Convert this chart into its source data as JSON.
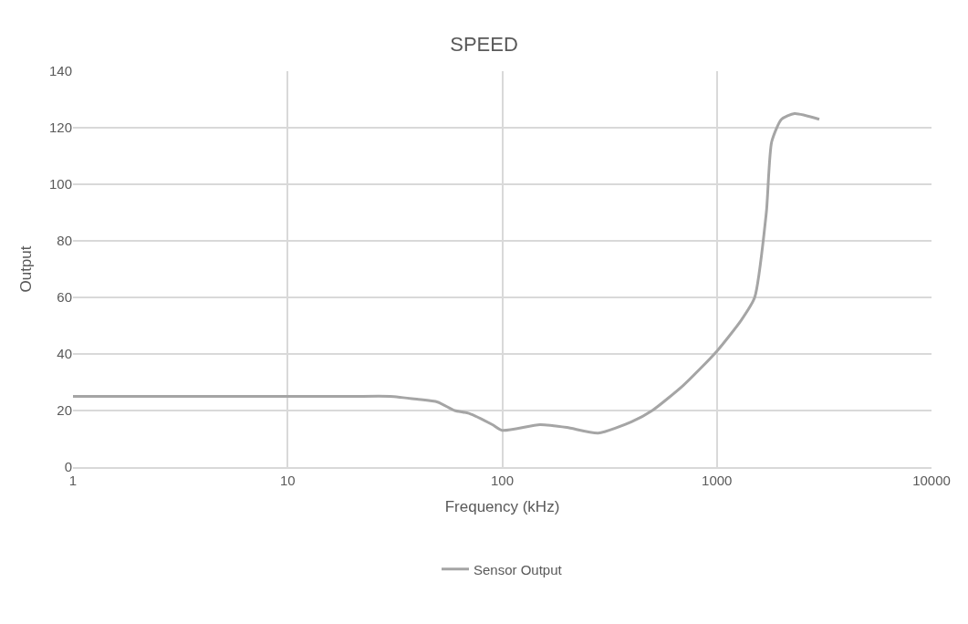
{
  "chart_data": {
    "type": "line",
    "title": "SPEED",
    "xlabel": "Frequency (kHz)",
    "ylabel": "Output",
    "log": "x",
    "xlim": [
      1,
      10000
    ],
    "xticks": [
      1,
      10,
      100,
      1000,
      10000
    ],
    "ylim": [
      0,
      140
    ],
    "yticks": [
      0,
      20,
      40,
      60,
      80,
      100,
      120,
      140
    ],
    "grid": true,
    "legend": "bottom",
    "marker": "none",
    "series": [
      {
        "name": "Sensor Output",
        "color": "#a5a5a5",
        "x": [
          1,
          10,
          20,
          30,
          40,
          50,
          60,
          70,
          90,
          100,
          150,
          200,
          280,
          400,
          500,
          700,
          1000,
          1300,
          1500,
          1700,
          1800,
          2000,
          2300,
          3000
        ],
        "values": [
          25,
          25,
          25,
          25,
          24,
          23,
          20,
          19,
          15,
          13,
          15,
          14,
          12,
          16,
          20,
          29,
          41,
          52,
          60,
          90,
          115,
          123,
          125,
          123
        ]
      }
    ]
  }
}
